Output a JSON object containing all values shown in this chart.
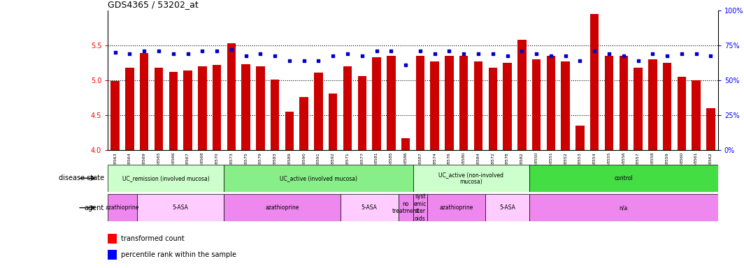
{
  "title": "GDS4365 / 53202_at",
  "samples": [
    "GSM948563",
    "GSM948564",
    "GSM948569",
    "GSM948565",
    "GSM948566",
    "GSM948567",
    "GSM948568",
    "GSM948570",
    "GSM948573",
    "GSM948575",
    "GSM948579",
    "GSM948583",
    "GSM948589",
    "GSM948590",
    "GSM948591",
    "GSM948592",
    "GSM948571",
    "GSM948577",
    "GSM948581",
    "GSM948585",
    "GSM948586",
    "GSM948587",
    "GSM948574",
    "GSM948576",
    "GSM948580",
    "GSM948584",
    "GSM948572",
    "GSM948578",
    "GSM948582",
    "GSM948550",
    "GSM948551",
    "GSM948552",
    "GSM948553",
    "GSM948554",
    "GSM948555",
    "GSM948556",
    "GSM948557",
    "GSM948558",
    "GSM948559",
    "GSM948560",
    "GSM948561",
    "GSM948562"
  ],
  "bar_values": [
    4.99,
    5.18,
    5.39,
    5.18,
    5.12,
    5.14,
    5.2,
    5.22,
    5.53,
    5.23,
    5.2,
    5.01,
    4.55,
    4.76,
    5.11,
    4.81,
    5.2,
    5.06,
    5.33,
    5.35,
    4.17,
    5.35,
    5.27,
    5.35,
    5.35,
    5.27,
    5.18,
    5.25,
    5.58,
    5.3,
    5.35,
    5.27,
    4.35,
    5.95,
    5.35,
    5.35,
    5.18,
    5.3,
    5.25,
    5.05,
    5.0,
    4.6
  ],
  "dot_values": [
    5.4,
    5.38,
    5.42,
    5.42,
    5.38,
    5.38,
    5.42,
    5.42,
    5.44,
    5.35,
    5.38,
    5.35,
    5.28,
    5.28,
    5.28,
    5.35,
    5.38,
    5.35,
    5.42,
    5.42,
    5.22,
    5.42,
    5.38,
    5.42,
    5.38,
    5.38,
    5.38,
    5.35,
    5.42,
    5.38,
    5.35,
    5.35,
    5.28,
    5.42,
    5.38,
    5.35,
    5.28,
    5.38,
    5.35,
    5.38,
    5.38,
    5.35
  ],
  "ylim": [
    4.0,
    6.0
  ],
  "yticks_left": [
    4.0,
    4.5,
    5.0,
    5.5
  ],
  "bar_color": "#cc0000",
  "dot_color": "#0000cc",
  "disease_state_groups": [
    {
      "label": "UC_remission (involved mucosa)",
      "start": 0,
      "end": 8,
      "color": "#ccffcc"
    },
    {
      "label": "UC_active (involved mucosa)",
      "start": 8,
      "end": 21,
      "color": "#88ee88"
    },
    {
      "label": "UC_active (non-involved\nmucosa)",
      "start": 21,
      "end": 29,
      "color": "#ccffcc"
    },
    {
      "label": "control",
      "start": 29,
      "end": 42,
      "color": "#44dd44"
    }
  ],
  "agent_groups": [
    {
      "label": "azathioprine",
      "start": 0,
      "end": 2,
      "color": "#ee88ee"
    },
    {
      "label": "5-ASA",
      "start": 2,
      "end": 8,
      "color": "#ffccff"
    },
    {
      "label": "azathioprine",
      "start": 8,
      "end": 16,
      "color": "#ee88ee"
    },
    {
      "label": "5-ASA",
      "start": 16,
      "end": 20,
      "color": "#ffccff"
    },
    {
      "label": "no\ntreatment",
      "start": 20,
      "end": 21,
      "color": "#ee88ee"
    },
    {
      "label": "syst\nemic\nster\noids",
      "start": 21,
      "end": 22,
      "color": "#ee88ee"
    },
    {
      "label": "azathioprine",
      "start": 22,
      "end": 26,
      "color": "#ee88ee"
    },
    {
      "label": "5-ASA",
      "start": 26,
      "end": 29,
      "color": "#ffccff"
    },
    {
      "label": "n/a",
      "start": 29,
      "end": 42,
      "color": "#ee88ee"
    }
  ],
  "dotted_lines": [
    4.5,
    5.0,
    5.5
  ],
  "right_ytick_labels": [
    "0%",
    "25%",
    "50%",
    "75%",
    "100%"
  ],
  "right_ytick_positions": [
    4.0,
    4.5,
    5.0,
    5.5,
    6.0
  ]
}
